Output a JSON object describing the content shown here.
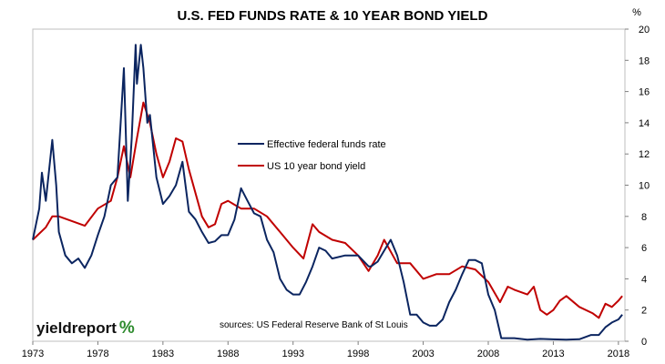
{
  "chart_data": {
    "type": "line",
    "title": "U.S. FED FUNDS RATE & 10 YEAR BOND YIELD",
    "unit_label": "%",
    "x_ticks": [
      "1973",
      "1978",
      "1983",
      "1988",
      "1993",
      "1998",
      "2003",
      "2008",
      "2013",
      "2018"
    ],
    "y_ticks": [
      "0",
      "2",
      "4",
      "6",
      "8",
      "10",
      "12",
      "14",
      "16",
      "18",
      "20"
    ],
    "xlim": [
      1973,
      2018.5
    ],
    "ylim": [
      0,
      20
    ],
    "y_axis_side": "right",
    "grid": false,
    "legend_placement": "center",
    "source": "sources: US Federal Reserve Bank of St Louis",
    "logo": "yieldreport",
    "logo_suffix": "%",
    "colors": {
      "fed_funds": "#0b2560",
      "bond": "#c00000",
      "logo_accent": "#2e8b2e"
    },
    "series": [
      {
        "name": "Effective federal funds rate",
        "color": "#0b2560",
        "x": [
          1973.0,
          1973.5,
          1973.7,
          1974.0,
          1974.5,
          1974.8,
          1975.0,
          1975.5,
          1976.0,
          1976.5,
          1977.0,
          1977.5,
          1978.0,
          1978.5,
          1979.0,
          1979.5,
          1980.0,
          1980.3,
          1980.6,
          1980.9,
          1981.0,
          1981.3,
          1981.5,
          1981.8,
          1982.0,
          1982.5,
          1983.0,
          1983.5,
          1984.0,
          1984.5,
          1985.0,
          1985.5,
          1986.0,
          1986.5,
          1987.0,
          1987.5,
          1988.0,
          1988.5,
          1989.0,
          1989.5,
          1990.0,
          1990.5,
          1991.0,
          1991.5,
          1992.0,
          1992.5,
          1993.0,
          1993.5,
          1994.0,
          1994.5,
          1995.0,
          1995.5,
          1996.0,
          1997.0,
          1998.0,
          1998.8,
          1999.0,
          1999.5,
          2000.0,
          2000.5,
          2001.0,
          2001.5,
          2002.0,
          2002.5,
          2003.0,
          2003.5,
          2004.0,
          2004.5,
          2005.0,
          2005.5,
          2006.0,
          2006.5,
          2007.0,
          2007.5,
          2008.0,
          2008.5,
          2009.0,
          2010.0,
          2011.0,
          2012.0,
          2013.0,
          2014.0,
          2015.0,
          2015.9,
          2016.5,
          2017.0,
          2017.5,
          2018.0,
          2018.3
        ],
        "values": [
          6.5,
          8.5,
          10.8,
          9.0,
          12.9,
          10.0,
          7.0,
          5.5,
          5.0,
          5.3,
          4.7,
          5.5,
          6.8,
          8.0,
          10.0,
          10.5,
          17.5,
          9.0,
          13.0,
          19.0,
          16.5,
          19.0,
          17.5,
          14.0,
          14.5,
          10.5,
          8.8,
          9.3,
          10.0,
          11.5,
          8.3,
          7.8,
          7.0,
          6.3,
          6.4,
          6.8,
          6.8,
          7.8,
          9.8,
          9.0,
          8.2,
          8.0,
          6.5,
          5.7,
          4.0,
          3.3,
          3.0,
          3.0,
          3.8,
          4.8,
          6.0,
          5.8,
          5.3,
          5.5,
          5.5,
          4.8,
          4.8,
          5.1,
          5.8,
          6.5,
          5.5,
          3.8,
          1.7,
          1.7,
          1.2,
          1.0,
          1.0,
          1.4,
          2.5,
          3.3,
          4.3,
          5.2,
          5.2,
          5.0,
          3.0,
          2.0,
          0.2,
          0.2,
          0.1,
          0.15,
          0.12,
          0.1,
          0.13,
          0.4,
          0.4,
          0.9,
          1.2,
          1.4,
          1.7
        ]
      },
      {
        "name": "US 10 year bond yield",
        "color": "#c00000",
        "x": [
          1973.0,
          1974.0,
          1974.5,
          1975.0,
          1976.0,
          1977.0,
          1978.0,
          1979.0,
          1979.5,
          1980.0,
          1980.5,
          1981.0,
          1981.5,
          1982.0,
          1982.5,
          1983.0,
          1983.5,
          1984.0,
          1984.5,
          1985.0,
          1986.0,
          1986.5,
          1987.0,
          1987.5,
          1988.0,
          1989.0,
          1990.0,
          1991.0,
          1992.0,
          1993.0,
          1993.8,
          1994.5,
          1995.0,
          1996.0,
          1997.0,
          1998.0,
          1998.8,
          1999.5,
          2000.0,
          2001.0,
          2002.0,
          2003.0,
          2004.0,
          2005.0,
          2006.0,
          2007.0,
          2008.0,
          2008.9,
          2009.5,
          2010.0,
          2011.0,
          2011.5,
          2012.0,
          2012.5,
          2013.0,
          2013.5,
          2014.0,
          2015.0,
          2016.0,
          2016.5,
          2017.0,
          2017.5,
          2018.0,
          2018.3
        ],
        "values": [
          6.5,
          7.3,
          8.0,
          8.0,
          7.7,
          7.4,
          8.5,
          9.0,
          10.5,
          12.5,
          10.5,
          13.0,
          15.3,
          14.0,
          12.0,
          10.5,
          11.5,
          13.0,
          12.8,
          11.0,
          8.0,
          7.3,
          7.5,
          8.8,
          9.0,
          8.5,
          8.5,
          8.0,
          7.0,
          6.0,
          5.3,
          7.5,
          7.0,
          6.5,
          6.3,
          5.5,
          4.5,
          5.5,
          6.5,
          5.0,
          5.0,
          4.0,
          4.3,
          4.3,
          4.8,
          4.6,
          3.8,
          2.5,
          3.5,
          3.3,
          3.0,
          3.5,
          2.0,
          1.7,
          2.0,
          2.6,
          2.9,
          2.2,
          1.8,
          1.5,
          2.4,
          2.2,
          2.6,
          2.9
        ]
      }
    ]
  }
}
